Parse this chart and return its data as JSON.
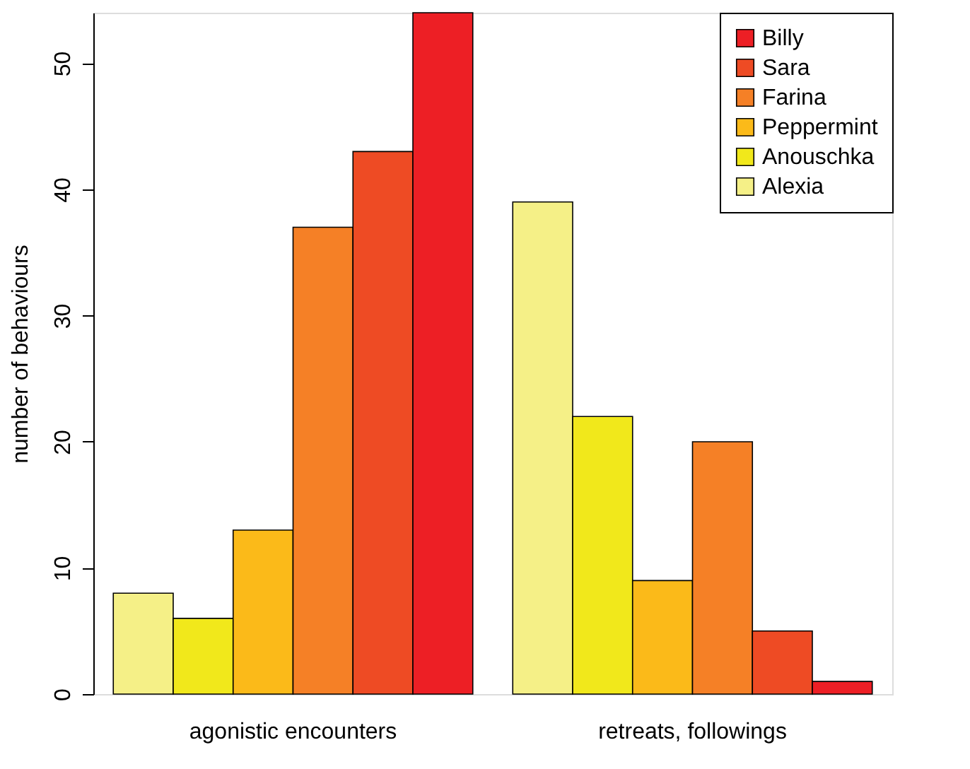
{
  "chart_data": {
    "type": "bar",
    "ylabel": "number of behaviours",
    "categories": [
      "agonistic encounters",
      "retreats, followings"
    ],
    "series": [
      {
        "name": "Alexia",
        "color": "#f5f087",
        "values": [
          8,
          39
        ]
      },
      {
        "name": "Anouschka",
        "color": "#f1e81b",
        "values": [
          6,
          22
        ]
      },
      {
        "name": "Peppermint",
        "color": "#fbba19",
        "values": [
          13,
          9
        ]
      },
      {
        "name": "Farina",
        "color": "#f58026",
        "values": [
          37,
          20
        ]
      },
      {
        "name": "Sara",
        "color": "#ee4b24",
        "values": [
          43,
          5
        ]
      },
      {
        "name": "Billy",
        "color": "#ed1f25",
        "values": [
          54,
          1
        ]
      }
    ],
    "ylim": [
      0,
      54
    ],
    "yticks": [
      0,
      10,
      20,
      30,
      40,
      50
    ],
    "grid": false,
    "legend": "top right"
  }
}
